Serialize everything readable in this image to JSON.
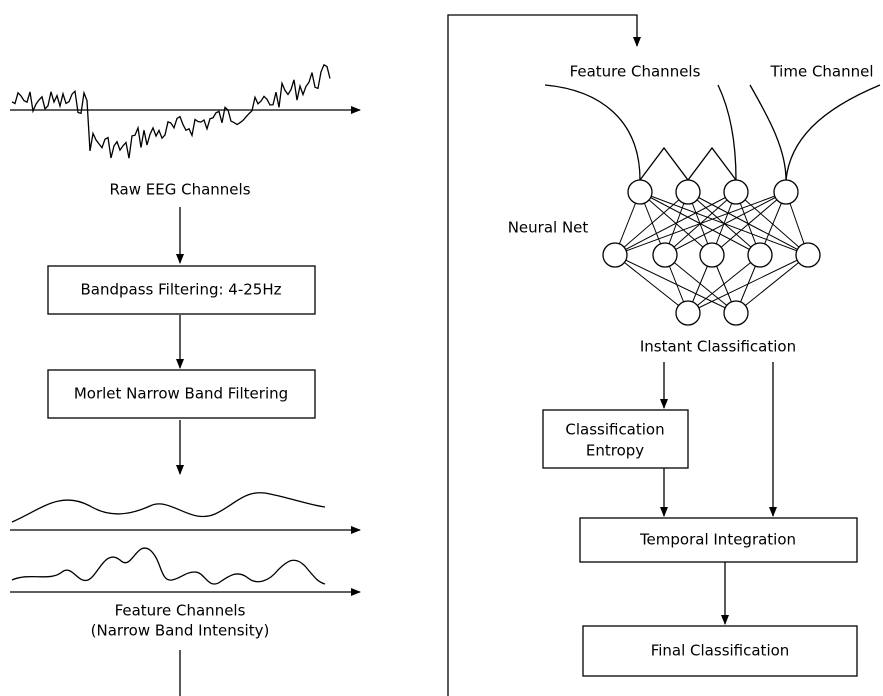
{
  "left": {
    "raw_label": "Raw EEG Channels",
    "steps": [
      "Bandpass Filtering: 4-25Hz",
      "Morlet Narrow Band Filtering"
    ],
    "feature_label": [
      "Feature Channels",
      "(Narrow Band Intensity)"
    ]
  },
  "right": {
    "inputs": [
      "Feature Channels",
      "Time Channel"
    ],
    "network_label": "Neural Net",
    "output_label": "Instant Classification",
    "entropy_box": [
      "Classification",
      "Entropy"
    ],
    "integration": "Temporal Integration",
    "final": "Final Classification"
  }
}
